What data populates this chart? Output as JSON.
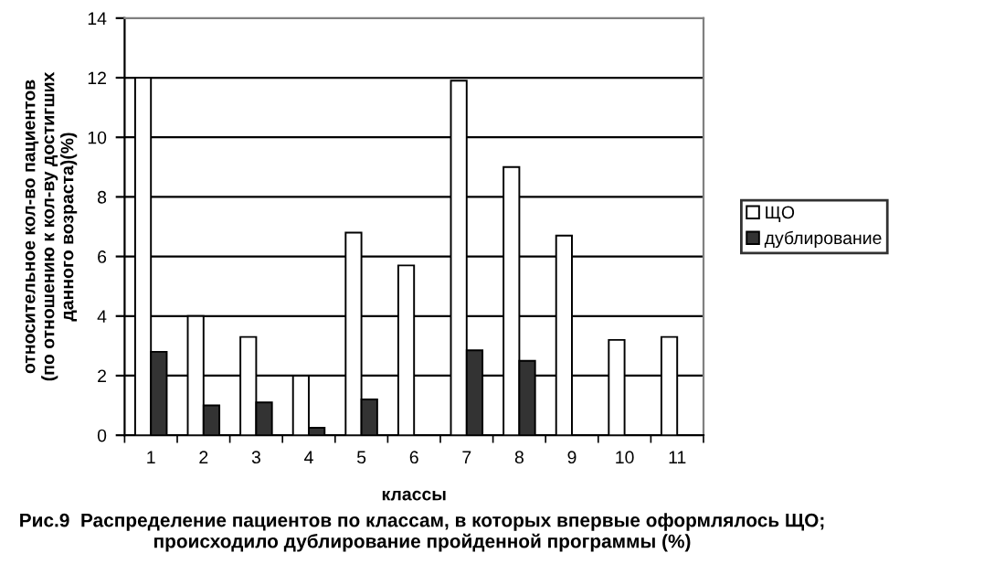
{
  "chart_data": {
    "type": "bar",
    "xlabel": "классы",
    "ylabel": "относительное кол-во пациентов (по отношению к кол-ву достигших данного возраста)(%)",
    "categories": [
      "1",
      "2",
      "3",
      "4",
      "5",
      "6",
      "7",
      "8",
      "9",
      "10",
      "11"
    ],
    "series": [
      {
        "name": "ЩО",
        "color": "#ffffff",
        "values": [
          12,
          4,
          3.3,
          2,
          6.8,
          5.7,
          11.9,
          9,
          6.7,
          3.2,
          3.3
        ]
      },
      {
        "name": "дублирование",
        "color": "#333333",
        "values": [
          2.8,
          1,
          1.1,
          0.25,
          1.2,
          null,
          2.85,
          2.5,
          null,
          null,
          null
        ]
      }
    ],
    "ylim": [
      0,
      14
    ],
    "yticks": [
      0,
      2,
      4,
      6,
      8,
      10,
      12,
      14
    ],
    "grid": "y",
    "legend": "right",
    "annotations": [
      "Рис.9  Распределение пациентов по классам, в которых впервые оформлялось ЩО; происходило дублирование пройденной программы (%)"
    ]
  }
}
